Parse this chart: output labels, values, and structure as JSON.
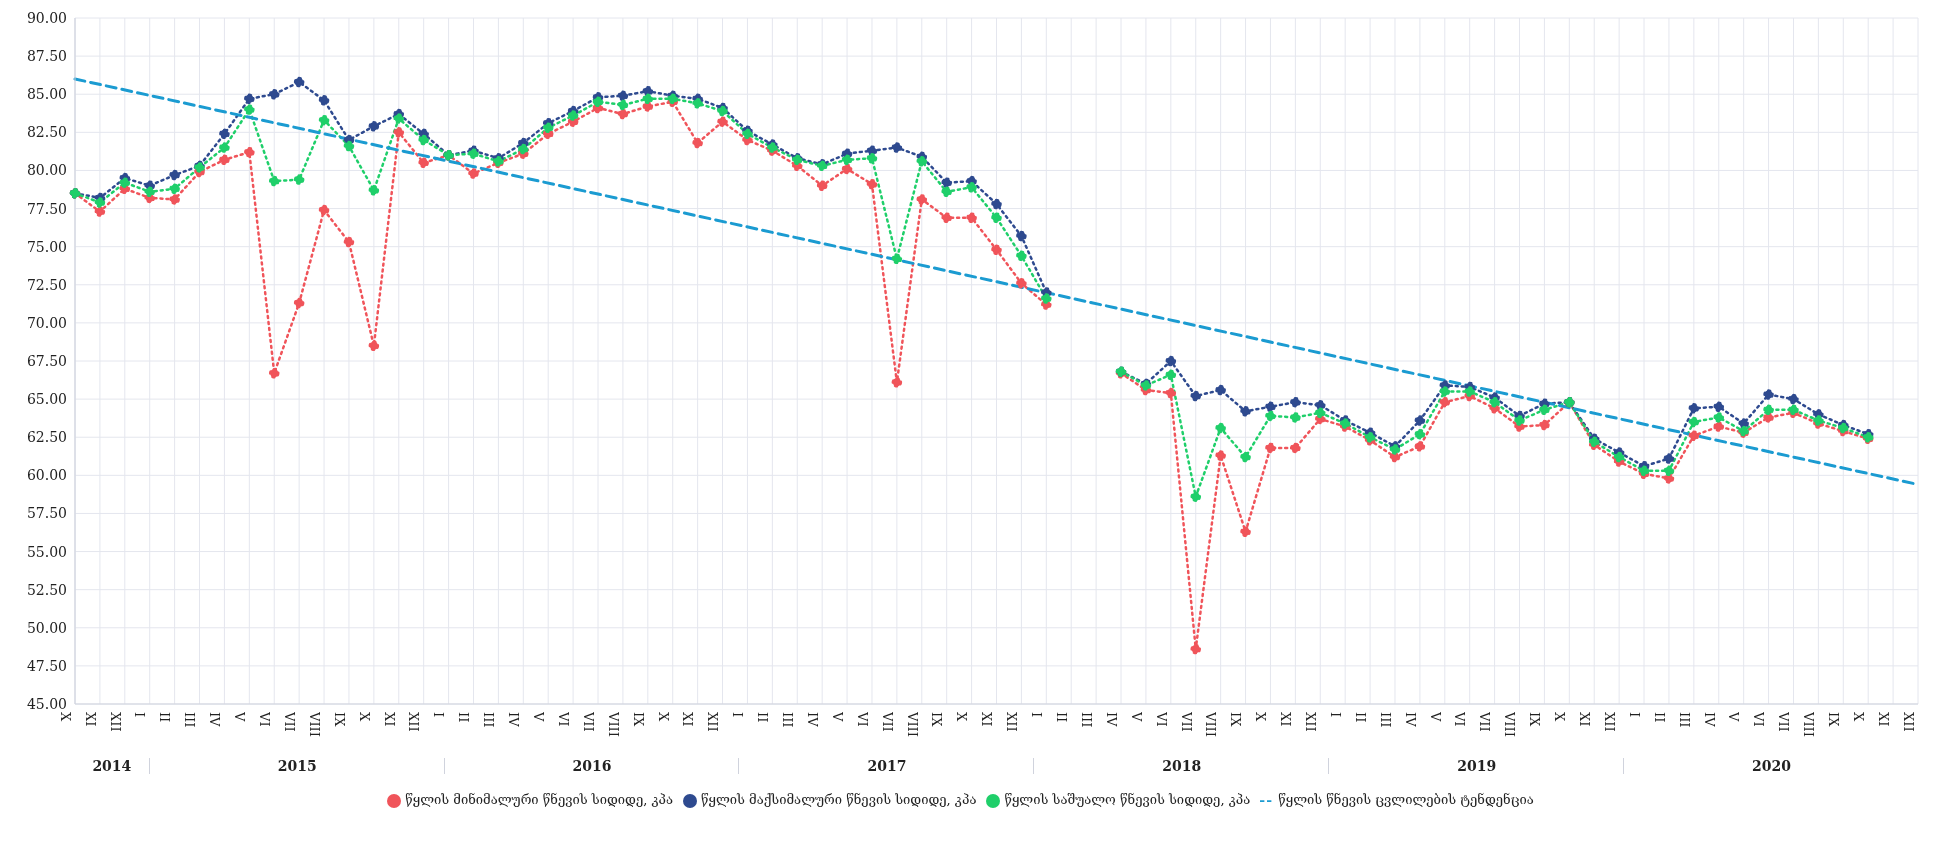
{
  "chart_data": {
    "type": "line",
    "marker": "circle",
    "grid": true,
    "legend": "bottom",
    "categories": [
      "X",
      "XI",
      "XII",
      "I",
      "II",
      "III",
      "IV",
      "V",
      "VI",
      "VII",
      "VIII",
      "IX",
      "X",
      "XI",
      "XII",
      "I",
      "II",
      "III",
      "IV",
      "V",
      "VI",
      "VII",
      "VIII",
      "IX",
      "X",
      "XI",
      "XII",
      "I",
      "II",
      "III",
      "IV",
      "V",
      "VI",
      "VII",
      "VIII",
      "IX",
      "X",
      "XI",
      "XII",
      "I",
      "II",
      "III",
      "IV",
      "V",
      "VI",
      "VII",
      "VIII",
      "IX",
      "X",
      "XI",
      "XII",
      "I",
      "II",
      "III",
      "IV",
      "V",
      "VI",
      "VII",
      "VIII",
      "IX",
      "X",
      "XI",
      "XII",
      "I",
      "II",
      "III",
      "IV",
      "V",
      "VI",
      "VII",
      "VIII",
      "IX",
      "X",
      "XI",
      "XII"
    ],
    "annotations": [
      "2014",
      "2015",
      "2016",
      "2017",
      "2018",
      "2019",
      "2020"
    ],
    "ylim": [
      45,
      90
    ],
    "yticks": [
      {
        "value": 45,
        "label": "45.00"
      },
      {
        "value": 47.5,
        "label": "47.50"
      },
      {
        "value": 50,
        "label": "50.00"
      },
      {
        "value": 52.5,
        "label": "52.50"
      },
      {
        "value": 55,
        "label": "55.00"
      },
      {
        "value": 57.5,
        "label": "57.50"
      },
      {
        "value": 60,
        "label": "60.00"
      },
      {
        "value": 62.5,
        "label": "62.50"
      },
      {
        "value": 65,
        "label": "65.00"
      },
      {
        "value": 67.5,
        "label": "67.50"
      },
      {
        "value": 70,
        "label": "70.00"
      },
      {
        "value": 72.5,
        "label": "72.50"
      },
      {
        "value": 75,
        "label": "75.00"
      },
      {
        "value": 77.5,
        "label": "77.50"
      },
      {
        "value": 80,
        "label": "80.00"
      },
      {
        "value": 82.5,
        "label": "82.50"
      },
      {
        "value": 85,
        "label": "85.00"
      },
      {
        "value": 87.5,
        "label": "87.50"
      },
      {
        "value": 90,
        "label": "90.00"
      }
    ],
    "series": [
      {
        "name": "წყლის მინიმალური წნევის სიდიდე, კპა",
        "color": "#f0545a",
        "line_style": "dotted",
        "values": [
          78.5,
          77.3,
          78.8,
          78.2,
          78.1,
          79.9,
          80.7,
          81.2,
          66.7,
          71.3,
          77.4,
          75.3,
          68.5,
          82.5,
          80.5,
          81.0,
          79.8,
          80.5,
          81.1,
          82.4,
          83.2,
          84.1,
          83.7,
          84.2,
          84.5,
          81.8,
          83.2,
          82.0,
          81.3,
          80.3,
          79.0,
          80.1,
          79.1,
          66.1,
          78.1,
          76.9,
          76.9,
          74.8,
          72.6,
          71.2,
          null,
          null,
          66.7,
          65.6,
          65.4,
          48.6,
          61.3,
          56.3,
          61.8,
          61.8,
          63.7,
          63.2,
          62.3,
          61.2,
          61.9,
          64.8,
          65.2,
          64.4,
          63.2,
          63.3,
          64.8,
          62.0,
          60.9,
          60.1,
          59.8,
          62.6,
          63.2,
          62.8,
          63.8,
          64.1,
          63.4,
          62.9,
          62.4,
          null,
          null
        ]
      },
      {
        "name": "წყლის მაქსიმალური წნევის სიდიდე, კპა",
        "color": "#2e4a8f",
        "line_style": "dotted",
        "values": [
          78.5,
          78.2,
          79.5,
          79.0,
          79.7,
          80.3,
          82.4,
          84.7,
          85.0,
          85.8,
          84.6,
          82.0,
          82.9,
          83.7,
          82.4,
          81.0,
          81.3,
          80.8,
          81.8,
          83.1,
          83.9,
          84.8,
          84.9,
          85.2,
          84.9,
          84.7,
          84.1,
          82.6,
          81.7,
          80.8,
          80.4,
          81.1,
          81.3,
          81.5,
          80.9,
          79.2,
          79.3,
          77.8,
          75.7,
          72.0,
          null,
          null,
          66.8,
          66.0,
          67.5,
          65.2,
          65.6,
          64.2,
          64.5,
          64.8,
          64.6,
          63.6,
          62.8,
          61.9,
          63.6,
          65.9,
          65.8,
          65.1,
          63.9,
          64.7,
          64.8,
          62.4,
          61.5,
          60.6,
          61.1,
          64.4,
          64.5,
          63.4,
          65.3,
          65.0,
          64.0,
          63.3,
          62.7,
          null,
          null
        ]
      },
      {
        "name": "წყლის საშუალო წნევის სიდიდე, კპა",
        "color": "#1fcf6a",
        "line_style": "dotted",
        "values": [
          78.5,
          77.9,
          79.2,
          78.6,
          78.8,
          80.2,
          81.5,
          84.0,
          79.3,
          79.4,
          83.3,
          81.6,
          78.7,
          83.4,
          82.0,
          81.0,
          81.1,
          80.6,
          81.4,
          82.8,
          83.6,
          84.5,
          84.3,
          84.7,
          84.7,
          84.4,
          83.9,
          82.4,
          81.5,
          80.7,
          80.3,
          80.7,
          80.8,
          74.2,
          80.6,
          78.6,
          78.9,
          76.9,
          74.4,
          71.6,
          null,
          null,
          66.8,
          65.9,
          66.6,
          58.6,
          63.1,
          61.2,
          63.9,
          63.8,
          64.1,
          63.4,
          62.5,
          61.7,
          62.7,
          65.5,
          65.5,
          64.8,
          63.6,
          64.3,
          64.8,
          62.2,
          61.2,
          60.3,
          60.3,
          63.5,
          63.8,
          62.9,
          64.3,
          64.3,
          63.6,
          63.1,
          62.5,
          null,
          null
        ]
      },
      {
        "name": "წყლის წნევის ცვლილების ტენდენცია",
        "color": "#1b9bd1",
        "line_style": "dashed",
        "marker": "none",
        "values": [
          86.0,
          null,
          null,
          null,
          null,
          null,
          null,
          null,
          null,
          null,
          null,
          null,
          null,
          null,
          null,
          null,
          null,
          null,
          null,
          null,
          null,
          null,
          null,
          null,
          null,
          null,
          null,
          null,
          null,
          null,
          null,
          null,
          null,
          null,
          null,
          null,
          null,
          null,
          null,
          null,
          null,
          null,
          null,
          null,
          null,
          null,
          null,
          null,
          null,
          null,
          null,
          null,
          null,
          null,
          null,
          null,
          null,
          null,
          null,
          null,
          null,
          null,
          null,
          null,
          null,
          null,
          null,
          null,
          null,
          null,
          null,
          null,
          null,
          null,
          59.4
        ]
      }
    ]
  }
}
